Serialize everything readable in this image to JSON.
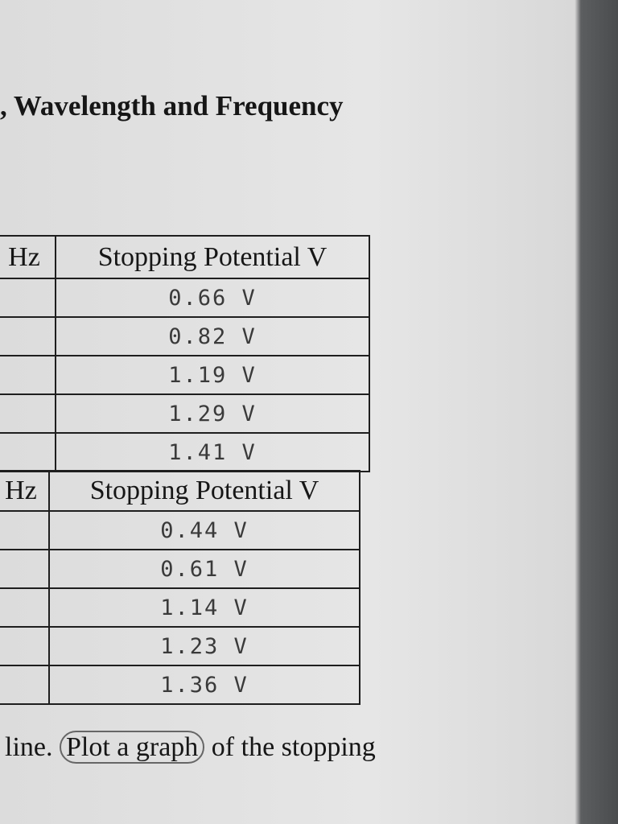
{
  "heading": ", Wavelength and Frequency",
  "table1": {
    "header": [
      "Hz",
      "Stopping Potential V"
    ],
    "rows": [
      "0.66 V",
      "0.82 V",
      "1.19 V",
      "1.29 V",
      "1.41 V"
    ]
  },
  "table2": {
    "header": [
      "Hz",
      "Stopping Potential V"
    ],
    "rows": [
      "0.44 V",
      "0.61 V",
      "1.14 V",
      "1.23 V",
      "1.36 V"
    ]
  },
  "footer": {
    "before": "line.",
    "circled": "Plot a graph",
    "after": "of the stopping"
  }
}
